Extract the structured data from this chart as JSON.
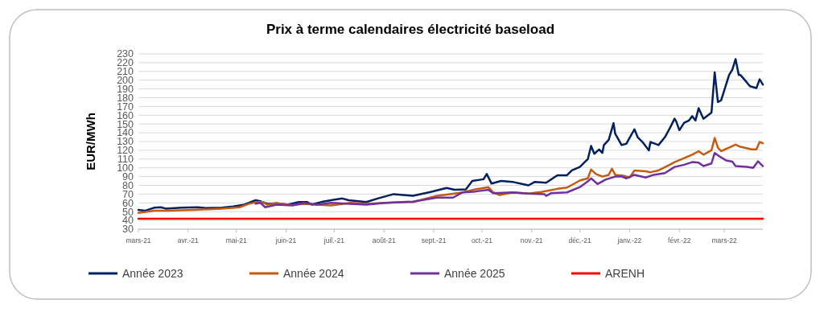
{
  "chart_data": {
    "type": "line",
    "title": "Prix à terme calendaires électricité baseload",
    "ylabel": "EUR/MWh",
    "xlim": [
      "2021-03-01",
      "2022-03-25"
    ],
    "xticks": [
      {
        "value": "2021-03-01",
        "label": "mars-21"
      },
      {
        "value": "2021-04-01",
        "label": "avr.-21"
      },
      {
        "value": "2021-05-01",
        "label": "mai-21"
      },
      {
        "value": "2021-06-01",
        "label": "juin-21"
      },
      {
        "value": "2021-07-01",
        "label": "juil.-21"
      },
      {
        "value": "2021-08-01",
        "label": "août-21"
      },
      {
        "value": "2021-09-01",
        "label": "sept.-21"
      },
      {
        "value": "2021-10-01",
        "label": "oct.-21"
      },
      {
        "value": "2021-11-01",
        "label": "nov.-21"
      },
      {
        "value": "2021-12-01",
        "label": "déc.-21"
      },
      {
        "value": "2022-01-01",
        "label": "janv.-22"
      },
      {
        "value": "2022-02-01",
        "label": "févr.-22"
      },
      {
        "value": "2022-03-01",
        "label": "mars-22"
      }
    ],
    "ylim": [
      30,
      230
    ],
    "yticks": [
      30,
      40,
      50,
      60,
      70,
      80,
      90,
      100,
      110,
      120,
      130,
      140,
      150,
      160,
      170,
      180,
      190,
      200,
      210,
      220,
      230
    ],
    "grid": "y",
    "legend": "bottom",
    "series": [
      {
        "name": "Année 2023",
        "color": "#002060",
        "x": [
          "2021-03-01",
          "2021-03-05",
          "2021-03-11",
          "2021-03-15",
          "2021-03-18",
          "2021-03-28",
          "2021-04-07",
          "2021-04-12",
          "2021-04-22",
          "2021-04-29",
          "2021-05-06",
          "2021-05-13",
          "2021-05-16",
          "2021-05-18",
          "2021-05-21",
          "2021-05-26",
          "2021-06-02",
          "2021-06-09",
          "2021-06-14",
          "2021-06-17",
          "2021-06-24",
          "2021-06-29",
          "2021-07-06",
          "2021-07-10",
          "2021-07-21",
          "2021-07-28",
          "2021-08-07",
          "2021-08-19",
          "2021-08-30",
          "2021-09-09",
          "2021-09-14",
          "2021-09-21",
          "2021-09-25",
          "2021-10-02",
          "2021-10-04",
          "2021-10-07",
          "2021-10-13",
          "2021-10-20",
          "2021-10-30",
          "2021-11-03",
          "2021-11-10",
          "2021-11-17",
          "2021-11-23",
          "2021-11-26",
          "2021-12-01",
          "2021-12-04",
          "2021-12-06",
          "2021-12-08",
          "2021-12-10",
          "2021-12-13",
          "2021-12-15",
          "2021-12-16",
          "2021-12-19",
          "2021-12-22",
          "2021-12-23",
          "2021-12-27",
          "2021-12-30",
          "2022-01-04",
          "2022-01-06",
          "2022-01-09",
          "2022-01-13",
          "2022-01-14",
          "2022-01-19",
          "2022-01-23",
          "2022-01-26",
          "2022-01-29",
          "2022-01-30",
          "2022-02-01",
          "2022-02-04",
          "2022-02-07",
          "2022-02-09",
          "2022-02-11",
          "2022-02-13",
          "2022-02-16",
          "2022-02-21",
          "2022-02-23",
          "2022-02-25",
          "2022-02-27",
          "2022-03-04",
          "2022-03-06",
          "2022-03-08",
          "2022-03-10",
          "2022-03-11",
          "2022-03-15",
          "2022-03-17",
          "2022-03-21",
          "2022-03-23",
          "2022-03-25"
        ],
        "values": [
          52,
          51,
          54.5,
          55,
          53.5,
          54.5,
          55,
          54,
          54.5,
          56,
          58,
          63,
          62,
          60,
          59,
          59.5,
          58,
          61,
          61,
          58,
          61.5,
          63,
          65,
          63,
          61,
          65,
          70,
          68,
          72.5,
          77,
          75,
          75.5,
          85,
          87,
          93,
          82,
          85,
          84,
          80,
          84,
          83,
          91.5,
          91.5,
          97,
          101,
          106.5,
          110,
          125,
          116,
          121,
          117,
          126,
          132,
          151,
          139,
          126,
          127.5,
          144,
          135,
          129.5,
          120,
          129.5,
          126,
          135,
          145,
          156,
          153,
          143,
          151.5,
          154,
          159,
          154,
          168,
          156,
          163,
          209,
          175,
          177,
          206,
          212,
          224,
          206,
          206,
          197.5,
          193,
          191,
          201,
          195
        ]
      },
      {
        "name": "Année 2024",
        "color": "#c55a11",
        "x": [
          "2021-03-01",
          "2021-03-11",
          "2021-03-20",
          "2021-04-05",
          "2021-04-22",
          "2021-05-03",
          "2021-05-09",
          "2021-05-14",
          "2021-05-18",
          "2021-05-20",
          "2021-05-26",
          "2021-06-05",
          "2021-06-12",
          "2021-06-20",
          "2021-06-29",
          "2021-07-11",
          "2021-07-21",
          "2021-08-02",
          "2021-08-19",
          "2021-09-03",
          "2021-09-11",
          "2021-09-19",
          "2021-09-27",
          "2021-10-05",
          "2021-10-08",
          "2021-10-12",
          "2021-10-20",
          "2021-10-30",
          "2021-11-07",
          "2021-11-17",
          "2021-11-23",
          "2021-12-01",
          "2021-12-06",
          "2021-12-08",
          "2021-12-11",
          "2021-12-15",
          "2021-12-19",
          "2021-12-21",
          "2021-12-23",
          "2021-12-28",
          "2022-01-01",
          "2022-01-04",
          "2022-01-11",
          "2022-01-14",
          "2022-01-19",
          "2022-01-26",
          "2022-01-29",
          "2022-02-04",
          "2022-02-09",
          "2022-02-13",
          "2022-02-16",
          "2022-02-21",
          "2022-02-23",
          "2022-02-25",
          "2022-02-27",
          "2022-03-05",
          "2022-03-08",
          "2022-03-11",
          "2022-03-18",
          "2022-03-21",
          "2022-03-23",
          "2022-03-25"
        ],
        "values": [
          48.5,
          51,
          51,
          52,
          53.5,
          55,
          59,
          61,
          61,
          58,
          59.5,
          57.5,
          59,
          58,
          57,
          60,
          59,
          60,
          61,
          68,
          70,
          72,
          75.5,
          78,
          72,
          69,
          72,
          70.5,
          72.5,
          76,
          77.5,
          85.5,
          88,
          98,
          93,
          90,
          92,
          99,
          92,
          91,
          89,
          97,
          96,
          95,
          97,
          103.5,
          106.5,
          111,
          115,
          119,
          115,
          120,
          134,
          123,
          119,
          124,
          126.5,
          124,
          121,
          121,
          129.5,
          128
        ]
      },
      {
        "name": "Année 2025",
        "color": "#7030a0",
        "x": [
          "2021-05-13",
          "2021-05-16",
          "2021-05-19",
          "2021-05-26",
          "2021-06-05",
          "2021-06-12",
          "2021-06-20",
          "2021-06-29",
          "2021-07-11",
          "2021-07-21",
          "2021-08-02",
          "2021-08-19",
          "2021-09-03",
          "2021-09-13",
          "2021-09-19",
          "2021-09-27",
          "2021-10-05",
          "2021-10-08",
          "2021-10-20",
          "2021-10-30",
          "2021-11-09",
          "2021-11-10",
          "2021-11-13",
          "2021-11-23",
          "2021-12-01",
          "2021-12-06",
          "2021-12-08",
          "2021-12-12",
          "2021-12-17",
          "2021-12-23",
          "2021-12-27",
          "2021-12-30",
          "2022-01-04",
          "2022-01-11",
          "2022-01-16",
          "2022-01-23",
          "2022-01-29",
          "2022-02-04",
          "2022-02-09",
          "2022-02-13",
          "2022-02-16",
          "2022-02-21",
          "2022-02-23",
          "2022-02-26",
          "2022-03-02",
          "2022-03-06",
          "2022-03-08",
          "2022-03-15",
          "2022-03-19",
          "2022-03-22",
          "2022-03-25"
        ],
        "values": [
          59,
          60,
          55,
          58,
          57,
          60,
          58,
          60,
          59,
          58,
          60,
          61.5,
          66,
          66,
          72,
          73,
          75,
          71,
          72,
          70.5,
          70,
          68,
          71,
          72,
          78,
          84.5,
          88,
          81.5,
          86.5,
          90,
          90,
          88,
          92,
          89,
          92,
          94,
          101,
          103.5,
          106.5,
          106,
          102,
          105,
          117,
          113,
          108.5,
          107,
          102,
          101,
          100,
          107.5,
          102
        ]
      },
      {
        "name": "ARENH",
        "color": "#ff0000",
        "x": [
          "2021-03-01",
          "2022-03-25"
        ],
        "values": [
          42,
          42
        ]
      }
    ]
  }
}
